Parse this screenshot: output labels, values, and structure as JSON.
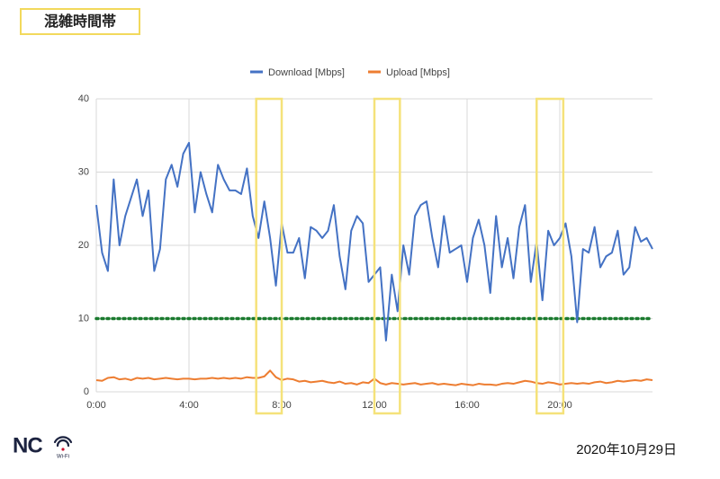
{
  "label": "混雑時間帯",
  "date": "2020年10月29日",
  "logo": {
    "text": "NC",
    "sub": "Wi-Fi"
  },
  "chart_data": {
    "type": "line",
    "xlim": [
      0,
      24
    ],
    "xticks": [
      {
        "value": 0,
        "label": "0:00"
      },
      {
        "value": 4,
        "label": "4:00"
      },
      {
        "value": 8,
        "label": "8:00"
      },
      {
        "value": 12,
        "label": "12:00"
      },
      {
        "value": 16,
        "label": "16:00"
      },
      {
        "value": 20,
        "label": "20:00"
      }
    ],
    "ylim": [
      0,
      40
    ],
    "yticks": [
      0,
      10,
      20,
      30,
      40
    ],
    "grid": true,
    "legend": "top",
    "x": [
      0,
      0.25,
      0.5,
      0.75,
      1,
      1.25,
      1.5,
      1.75,
      2,
      2.25,
      2.5,
      2.75,
      3,
      3.25,
      3.5,
      3.75,
      4,
      4.25,
      4.5,
      4.75,
      5,
      5.25,
      5.5,
      5.75,
      6,
      6.25,
      6.5,
      6.75,
      7,
      7.25,
      7.5,
      7.75,
      8,
      8.25,
      8.5,
      8.75,
      9,
      9.25,
      9.5,
      9.75,
      10,
      10.25,
      10.5,
      10.75,
      11,
      11.25,
      11.5,
      11.75,
      12,
      12.25,
      12.5,
      12.75,
      13,
      13.25,
      13.5,
      13.75,
      14,
      14.25,
      14.5,
      14.75,
      15,
      15.25,
      15.5,
      15.75,
      16,
      16.25,
      16.5,
      16.75,
      17,
      17.25,
      17.5,
      17.75,
      18,
      18.25,
      18.5,
      18.75,
      19,
      19.25,
      19.5,
      19.75,
      20,
      20.25,
      20.5,
      20.75,
      21,
      21.25,
      21.5,
      21.75,
      22,
      22.25,
      22.5,
      22.75,
      23,
      23.25,
      23.5,
      23.75,
      24
    ],
    "series": [
      {
        "name": "Download [Mbps]",
        "color": "#4472c4",
        "values": [
          25.5,
          19,
          16.5,
          29,
          20,
          24,
          26.5,
          29,
          24,
          27.5,
          16.5,
          19.5,
          29,
          31,
          28,
          32.5,
          34,
          24.5,
          30,
          27,
          24.5,
          31,
          29,
          27.5,
          27.5,
          27,
          30.5,
          24,
          21,
          26,
          21,
          14.5,
          23,
          19,
          19,
          21,
          15.5,
          22.5,
          22,
          21,
          22,
          25.5,
          18.5,
          14,
          22,
          24,
          23,
          15,
          16,
          17,
          7,
          16,
          11,
          20,
          16,
          24,
          25.5,
          26,
          21,
          17,
          24,
          19,
          19.5,
          20,
          15,
          21,
          23.5,
          20,
          13.5,
          24,
          17,
          21,
          15.5,
          22.5,
          25.5,
          15,
          20.5,
          12.5,
          22,
          20,
          21,
          23,
          18.5,
          9.5,
          19.5,
          19,
          22.5,
          17,
          18.5,
          19,
          22,
          16,
          17,
          22.5,
          20.5,
          21,
          19.5
        ]
      },
      {
        "name": "Upload [Mbps]",
        "color": "#ed7d31",
        "values": [
          1.6,
          1.5,
          1.9,
          2.0,
          1.7,
          1.8,
          1.6,
          1.9,
          1.8,
          1.9,
          1.7,
          1.8,
          1.9,
          1.8,
          1.7,
          1.8,
          1.8,
          1.7,
          1.8,
          1.8,
          1.9,
          1.8,
          1.9,
          1.8,
          1.9,
          1.8,
          2.0,
          1.9,
          1.9,
          2.1,
          2.9,
          2.0,
          1.6,
          1.8,
          1.7,
          1.4,
          1.5,
          1.3,
          1.4,
          1.5,
          1.3,
          1.2,
          1.4,
          1.1,
          1.2,
          1.0,
          1.3,
          1.2,
          1.8,
          1.2,
          1.0,
          1.2,
          1.1,
          1.0,
          1.1,
          1.2,
          1.0,
          1.1,
          1.2,
          1.0,
          1.1,
          1.0,
          0.9,
          1.1,
          1.0,
          0.9,
          1.1,
          1.0,
          1.0,
          0.9,
          1.1,
          1.2,
          1.1,
          1.3,
          1.5,
          1.4,
          1.2,
          1.1,
          1.3,
          1.2,
          1.0,
          1.1,
          1.2,
          1.1,
          1.2,
          1.1,
          1.3,
          1.4,
          1.2,
          1.3,
          1.5,
          1.4,
          1.5,
          1.6,
          1.5,
          1.7,
          1.6
        ]
      }
    ],
    "reference_line": {
      "value": 10,
      "color": "#1a7a2e"
    },
    "highlights": [
      {
        "from": 6.9,
        "to": 8.0
      },
      {
        "from": 12.0,
        "to": 13.1
      },
      {
        "from": 19.0,
        "to": 20.15
      }
    ],
    "highlight_color": "#f5e27a"
  }
}
